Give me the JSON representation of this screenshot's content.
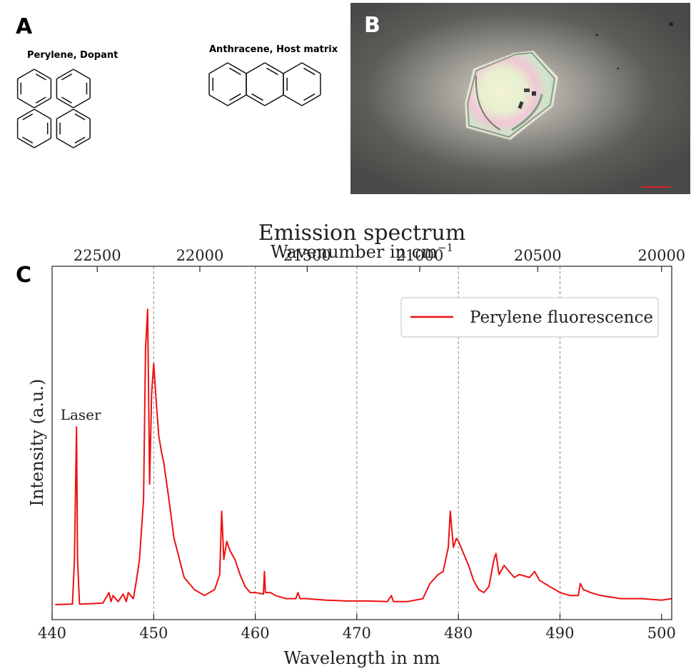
{
  "panels": {
    "a": {
      "letter": "A",
      "perylene_label": "Perylene, Dopant",
      "anthracene_label": "Anthracene, Host matrix"
    },
    "b": {
      "letter": "B",
      "image": "microscope-photo-of-hexagonal-crystal"
    },
    "c": {
      "letter": "C"
    }
  },
  "chart_data": {
    "type": "line",
    "title": "Emission spectrum",
    "secondary_xlabel": "Wavenumber in cm",
    "secondary_xlabel_sup": "−1",
    "xlabel": "Wavelength in nm",
    "ylabel": "Intensity (a.u.)",
    "xlim": [
      440,
      501
    ],
    "ylim": [
      0,
      1
    ],
    "x_ticks": [
      "440",
      "450",
      "460",
      "470",
      "480",
      "490",
      "500"
    ],
    "top_ticks": [
      "22500",
      "22000",
      "21500",
      "21000",
      "20500",
      "20000"
    ],
    "grid": "vertical dashed at 450, 460, 470, 480, 490",
    "legend": {
      "position": "top-right"
    },
    "series": [
      {
        "name": "Perylene fluorescence",
        "color": "#ee1111",
        "x": [
          440.3,
          442.0,
          442.2,
          442.4,
          442.5,
          442.7,
          443.0,
          445.0,
          445.6,
          445.8,
          446.0,
          446.5,
          447.0,
          447.3,
          447.5,
          448.0,
          448.3,
          448.6,
          449.0,
          449.2,
          449.4,
          449.6,
          449.8,
          450.0,
          450.3,
          450.5,
          450.8,
          451.0,
          451.5,
          452.0,
          453.0,
          454.0,
          455.0,
          456.0,
          456.5,
          456.7,
          456.9,
          457.2,
          457.5,
          458.0,
          458.5,
          459.0,
          459.5,
          460.0,
          460.8,
          460.9,
          461.0,
          461.5,
          462.0,
          463.0,
          464.0,
          464.2,
          464.4,
          465.0,
          467.0,
          469.0,
          471.0,
          473.0,
          473.4,
          473.6,
          475.0,
          476.5,
          477.2,
          478.0,
          478.5,
          479.0,
          479.2,
          479.5,
          479.8,
          480.0,
          480.5,
          481.0,
          481.5,
          482.0,
          482.5,
          483.0,
          483.5,
          483.7,
          484.0,
          484.5,
          485.0,
          485.5,
          486.0,
          487.0,
          487.5,
          488.0,
          489.0,
          490.0,
          491.0,
          491.8,
          492.0,
          492.3,
          493.0,
          494.0,
          496.0,
          498.0,
          500.0,
          501.0
        ],
        "y": [
          0.0,
          0.002,
          0.15,
          0.59,
          0.15,
          0.002,
          0.002,
          0.005,
          0.04,
          0.01,
          0.03,
          0.01,
          0.035,
          0.01,
          0.04,
          0.02,
          0.08,
          0.15,
          0.35,
          0.85,
          0.98,
          0.4,
          0.7,
          0.8,
          0.65,
          0.56,
          0.5,
          0.47,
          0.35,
          0.22,
          0.09,
          0.05,
          0.03,
          0.05,
          0.1,
          0.31,
          0.15,
          0.21,
          0.18,
          0.15,
          0.1,
          0.06,
          0.04,
          0.04,
          0.035,
          0.11,
          0.04,
          0.04,
          0.03,
          0.02,
          0.02,
          0.04,
          0.02,
          0.02,
          0.015,
          0.012,
          0.012,
          0.01,
          0.03,
          0.01,
          0.01,
          0.02,
          0.07,
          0.1,
          0.11,
          0.19,
          0.31,
          0.19,
          0.22,
          0.21,
          0.17,
          0.13,
          0.08,
          0.05,
          0.04,
          0.06,
          0.15,
          0.17,
          0.1,
          0.13,
          0.11,
          0.09,
          0.1,
          0.09,
          0.11,
          0.08,
          0.06,
          0.04,
          0.03,
          0.03,
          0.07,
          0.05,
          0.04,
          0.03,
          0.02,
          0.02,
          0.015,
          0.02
        ]
      }
    ],
    "annotations": [
      {
        "text": "Laser",
        "x": 442.4,
        "y": 0.59
      }
    ]
  },
  "colors": {
    "line": "#ee1111",
    "grid": "#888888",
    "background": "#ffffff"
  }
}
